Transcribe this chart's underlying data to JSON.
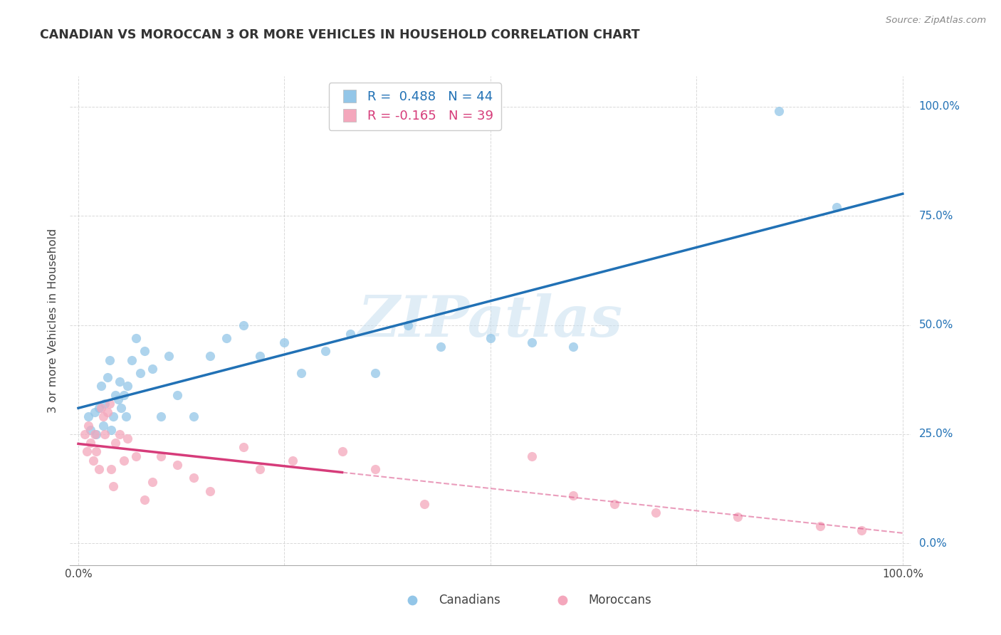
{
  "title": "CANADIAN VS MOROCCAN 3 OR MORE VEHICLES IN HOUSEHOLD CORRELATION CHART",
  "source": "Source: ZipAtlas.com",
  "ylabel": "3 or more Vehicles in Household",
  "watermark": "ZIPatlas",
  "canadian_R": 0.488,
  "canadian_N": 44,
  "moroccan_R": -0.165,
  "moroccan_N": 39,
  "canadian_color": "#93c6e8",
  "moroccan_color": "#f4a7bc",
  "canadian_line_color": "#2171b5",
  "moroccan_line_color": "#d63c7a",
  "canadian_x": [
    1.2,
    1.5,
    2.0,
    2.2,
    2.5,
    2.8,
    3.0,
    3.2,
    3.5,
    3.8,
    4.0,
    4.2,
    4.5,
    4.8,
    5.0,
    5.2,
    5.5,
    5.8,
    6.0,
    6.5,
    7.0,
    7.5,
    8.0,
    9.0,
    10.0,
    11.0,
    12.0,
    14.0,
    16.0,
    18.0,
    20.0,
    22.0,
    25.0,
    27.0,
    30.0,
    33.0,
    36.0,
    40.0,
    44.0,
    50.0,
    55.0,
    60.0,
    85.0,
    92.0
  ],
  "canadian_y": [
    29,
    26,
    30,
    25,
    31,
    36,
    27,
    32,
    38,
    42,
    26,
    29,
    34,
    33,
    37,
    31,
    34,
    29,
    36,
    42,
    47,
    39,
    44,
    40,
    29,
    43,
    34,
    29,
    43,
    47,
    50,
    43,
    46,
    39,
    44,
    48,
    39,
    50,
    45,
    47,
    46,
    45,
    99,
    77
  ],
  "moroccan_x": [
    0.8,
    1.0,
    1.2,
    1.5,
    1.8,
    2.0,
    2.2,
    2.5,
    2.8,
    3.0,
    3.2,
    3.5,
    3.8,
    4.0,
    4.2,
    4.5,
    5.0,
    5.5,
    6.0,
    7.0,
    8.0,
    9.0,
    10.0,
    12.0,
    14.0,
    16.0,
    20.0,
    22.0,
    26.0,
    32.0,
    36.0,
    42.0,
    55.0,
    60.0,
    65.0,
    70.0,
    80.0,
    90.0,
    95.0
  ],
  "moroccan_y": [
    25,
    21,
    27,
    23,
    19,
    25,
    21,
    17,
    31,
    29,
    25,
    30,
    32,
    17,
    13,
    23,
    25,
    19,
    24,
    20,
    10,
    14,
    20,
    18,
    15,
    12,
    22,
    17,
    19,
    21,
    17,
    9,
    20,
    11,
    9,
    7,
    6,
    4,
    3
  ],
  "moroccan_solid_end": 32,
  "x_tick_positions": [
    0,
    25,
    50,
    75,
    100
  ],
  "x_tick_labels": [
    "0.0%",
    "",
    "",
    "",
    "100.0%"
  ],
  "y_tick_positions": [
    0,
    25,
    50,
    75,
    100
  ],
  "y_tick_labels_right": [
    "0.0%",
    "25.0%",
    "50.0%",
    "75.0%",
    "100.0%"
  ]
}
